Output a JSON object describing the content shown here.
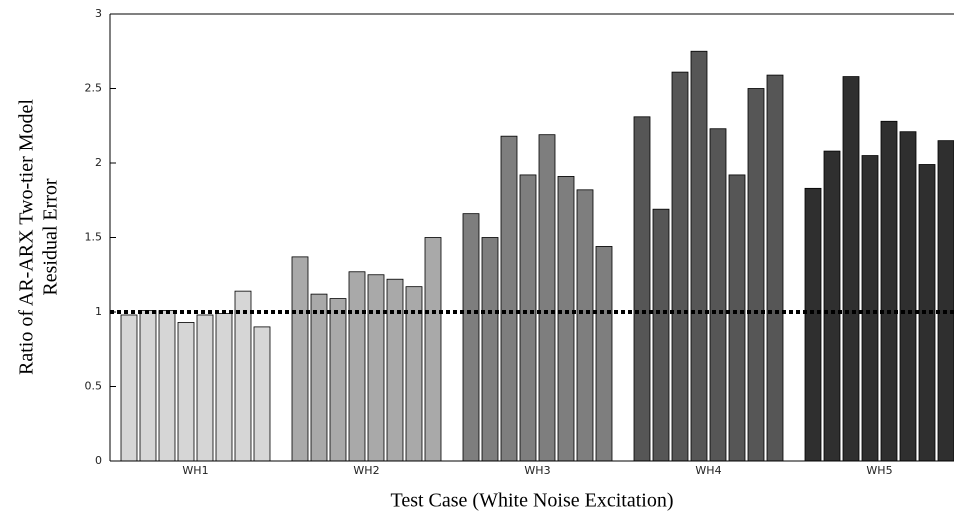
{
  "chart_data": {
    "type": "grouped-bar",
    "x_label": "Test Case (White Noise Excitation)",
    "y_label": [
      "Ratio of AR-ARX Two-tier Model",
      "Residual Error"
    ],
    "ylim": [
      0,
      3
    ],
    "yticks": [
      0,
      0.5,
      1,
      1.5,
      2,
      2.5,
      3
    ],
    "reference_line": 1,
    "groups": [
      {
        "label": "WH1",
        "color": "#d6d6d6",
        "values": [
          0.98,
          1.01,
          1.01,
          0.93,
          0.98,
          0.99,
          1.14,
          0.9
        ]
      },
      {
        "label": "WH2",
        "color": "#a9a9a9",
        "values": [
          1.37,
          1.12,
          1.09,
          1.27,
          1.25,
          1.22,
          1.17,
          1.5
        ]
      },
      {
        "label": "WH3",
        "color": "#7e7e7e",
        "values": [
          1.66,
          1.5,
          2.18,
          1.92,
          2.19,
          1.91,
          1.82,
          1.44
        ]
      },
      {
        "label": "WH4",
        "color": "#565656",
        "values": [
          2.31,
          1.69,
          2.61,
          2.75,
          2.23,
          1.92,
          2.5,
          2.59
        ]
      },
      {
        "label": "WH5",
        "color": "#2f2f2f",
        "values": [
          1.83,
          2.08,
          2.58,
          2.05,
          2.28,
          2.21,
          1.99,
          2.15
        ]
      }
    ]
  }
}
